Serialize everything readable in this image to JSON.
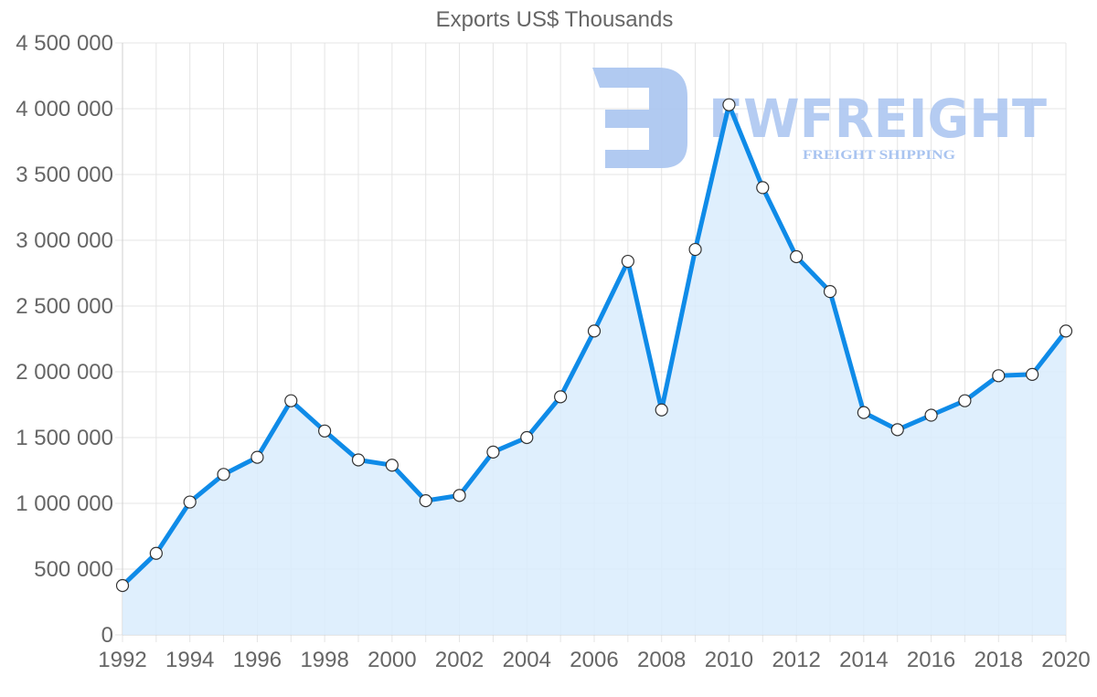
{
  "chart_data": {
    "type": "area",
    "title": "Exports US$ Thousands",
    "xlabel": "",
    "ylabel": "",
    "x": [
      1992,
      1993,
      1994,
      1995,
      1996,
      1997,
      1998,
      1999,
      2000,
      2001,
      2002,
      2003,
      2004,
      2005,
      2006,
      2007,
      2008,
      2009,
      2010,
      2011,
      2012,
      2013,
      2014,
      2015,
      2016,
      2017,
      2018,
      2019,
      2020
    ],
    "series": [
      {
        "name": "Exports US$ Thousands",
        "color": "#0f8be8",
        "fill": "#d9ecfd",
        "values": [
          375000,
          620000,
          1010000,
          1220000,
          1350000,
          1780000,
          1550000,
          1330000,
          1290000,
          1020000,
          1060000,
          1390000,
          1500000,
          1810000,
          2310000,
          2840000,
          1710000,
          2930000,
          4030000,
          3400000,
          2875000,
          2610000,
          1690000,
          1560000,
          1670000,
          1780000,
          1970000,
          1980000,
          2310000
        ]
      }
    ],
    "ylim": [
      0,
      4500000
    ],
    "yticks": [
      "0",
      "500 000",
      "1 000 000",
      "1 500 000",
      "2 000 000",
      "2 500 000",
      "3 000 000",
      "3 500 000",
      "4 000 000",
      "4 500 000"
    ],
    "xticks": [
      "1992",
      "1994",
      "1996",
      "1998",
      "2000",
      "2002",
      "2004",
      "2006",
      "2008",
      "2010",
      "2012",
      "2014",
      "2016",
      "2018",
      "2020"
    ],
    "grid": true,
    "legend": "none"
  },
  "watermark": {
    "brand": "FWFREIGHT",
    "tagline": "FREIGHT SHIPPING",
    "color": "#a9c4f0"
  }
}
